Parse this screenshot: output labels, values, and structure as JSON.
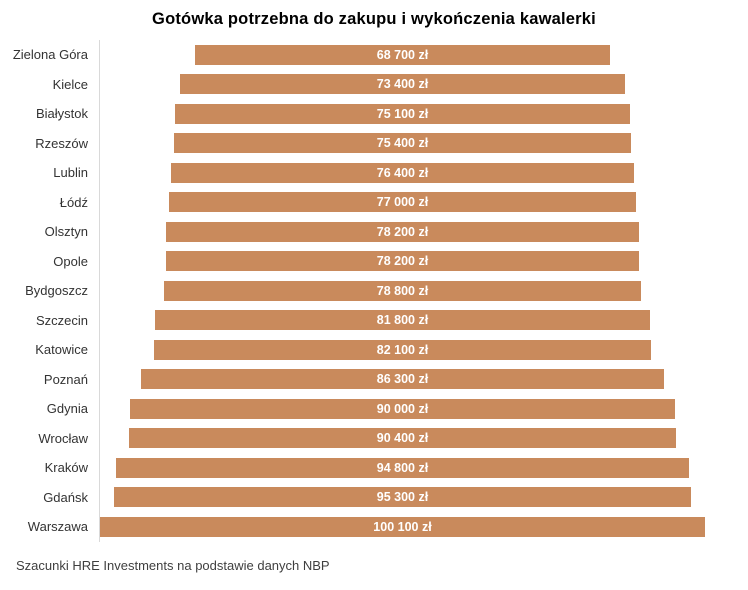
{
  "title": "Gotówka potrzebna do zakupu i wykończenia kawalerki",
  "source_note": "Szacunki HRE Investments na podstawie danych NBP",
  "colors": {
    "bar_fill": "#C98A5C",
    "bar_value_text": "#FFFFFF",
    "axis_line": "#D9D9D9",
    "category_label": "#333333",
    "title_text": "#000000",
    "source_text": "#3F3F3F",
    "background": "#FFFFFF"
  },
  "chart_data": {
    "type": "bar",
    "orientation": "horizontal",
    "bar_alignment": "centered-funnel",
    "title": "Gotówka potrzebna do zakupu i wykończenia kawalerki",
    "xlabel": "",
    "ylabel": "",
    "unit": "zł",
    "grid": false,
    "legend": false,
    "value_labels_position": "inside-center",
    "xlim": [
      0,
      100100
    ],
    "categories": [
      "Zielona Góra",
      "Kielce",
      "Białystok",
      "Rzeszów",
      "Lublin",
      "Łódź",
      "Olsztyn",
      "Opole",
      "Bydgoszcz",
      "Szczecin",
      "Katowice",
      "Poznań",
      "Gdynia",
      "Wrocław",
      "Kraków",
      "Gdańsk",
      "Warszawa"
    ],
    "values": [
      68700,
      73400,
      75100,
      75400,
      76400,
      77000,
      78200,
      78200,
      78800,
      81800,
      82100,
      86300,
      90000,
      90400,
      94800,
      95300,
      100100
    ],
    "value_labels": [
      "68 700 zł",
      "73 400 zł",
      "75 100 zł",
      "75 400 zł",
      "76 400 zł",
      "77 000 zł",
      "78 200 zł",
      "78 200 zł",
      "78 800 zł",
      "81 800 zł",
      "82 100 zł",
      "86 300 zł",
      "90 000 zł",
      "90 400 zł",
      "94 800 zł",
      "95 300 zł",
      "100 100 zł"
    ],
    "source": "Szacunki HRE Investments na podstawie danych NBP"
  }
}
